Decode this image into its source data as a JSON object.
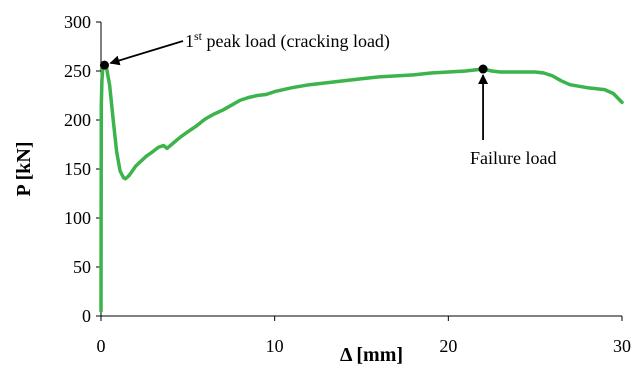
{
  "chart_data": {
    "type": "line",
    "title": "",
    "xlabel": "Δ [mm]",
    "ylabel": "P [kN]",
    "xlim": [
      0,
      30
    ],
    "ylim": [
      0,
      300
    ],
    "xticks": [
      0,
      10,
      20,
      30
    ],
    "yticks": [
      0,
      50,
      100,
      150,
      200,
      250,
      300
    ],
    "grid": false,
    "legend": "none",
    "line_color": "#3cb44b",
    "series": [
      {
        "x": [
          0,
          0.02,
          0.05,
          0.1,
          0.2,
          0.3,
          0.5,
          0.7,
          0.9,
          1.1,
          1.3,
          1.4,
          1.6,
          1.8,
          2.0,
          2.3,
          2.6,
          3.0,
          3.3,
          3.6,
          3.8,
          4.2,
          4.6,
          5.0,
          5.5,
          6.0,
          6.5,
          7.0,
          7.5,
          8.0,
          8.5,
          9.0,
          9.5,
          10.0,
          11.0,
          12.0,
          13.0,
          14.0,
          15.0,
          16.0,
          17.0,
          18.0,
          19.0,
          20.0,
          21.0,
          22.0,
          22.5,
          23.0,
          24.0,
          25.0,
          25.5,
          26.0,
          26.5,
          27.0,
          28.0,
          29.0,
          29.5,
          30.0
        ],
        "y": [
          5,
          215,
          240,
          252,
          256,
          255,
          235,
          200,
          168,
          148,
          141,
          140,
          143,
          148,
          153,
          158,
          163,
          168,
          172,
          174,
          171,
          177,
          183,
          188,
          194,
          201,
          206,
          210,
          215,
          220,
          223,
          225,
          226,
          229,
          233,
          236,
          238,
          240,
          242,
          244,
          245,
          246,
          248,
          249,
          250,
          252,
          250,
          249,
          249,
          249,
          248,
          245,
          240,
          236,
          233,
          231,
          227,
          218
        ]
      }
    ],
    "points": [
      {
        "x": 0.2,
        "y": 256,
        "label": "1st peak load (cracking load)"
      },
      {
        "x": 22.0,
        "y": 252,
        "label": "Failure load"
      }
    ],
    "annotations": {
      "peak_main": "1",
      "peak_sup": "st",
      "peak_rest": " peak load (cracking load)",
      "failure": "Failure load"
    }
  }
}
